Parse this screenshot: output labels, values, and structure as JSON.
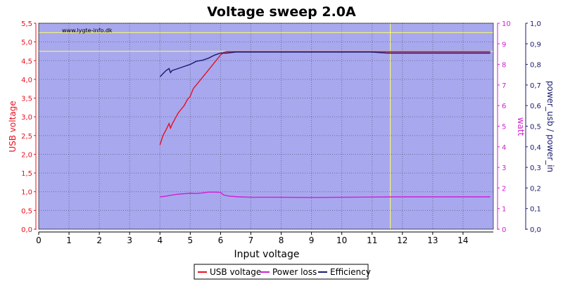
{
  "chart_data": {
    "type": "line",
    "title": "Voltage sweep 2.0A",
    "watermark": "www.lygte-info.dk",
    "xlabel": "Input voltage",
    "ylabel_left": "USB voltage",
    "ylabel_right1": "watt",
    "ylabel_right2": "power_usb / power_in",
    "xlim": [
      0,
      15
    ],
    "ylim_left": [
      0,
      5.5
    ],
    "ylim_right1": [
      0,
      10
    ],
    "ylim_right2": [
      0,
      1
    ],
    "x_ticks": [
      "0",
      "1",
      "2",
      "3",
      "4",
      "5",
      "6",
      "7",
      "8",
      "9",
      "10",
      "11",
      "12",
      "13",
      "14"
    ],
    "y_ticks_left": [
      "0,0",
      "0,5",
      "1,0",
      "1,5",
      "2,0",
      "2,5",
      "3,0",
      "3,5",
      "4,0",
      "4,5",
      "5,0",
      "5,5"
    ],
    "y_ticks_right1": [
      "0",
      "1",
      "2",
      "3",
      "4",
      "5",
      "6",
      "7",
      "8",
      "9",
      "10"
    ],
    "y_ticks_right2": [
      "0,0",
      "0,1",
      "0,2",
      "0,3",
      "0,4",
      "0,5",
      "0,6",
      "0,7",
      "0,8",
      "0,9",
      "1,0"
    ],
    "grid": true,
    "legend_position": "bottom-center",
    "reference_lines": {
      "horizontal_left_axis": [
        5.25,
        4.75
      ],
      "vertical_x": [
        11.6
      ]
    },
    "series": [
      {
        "name": "USB voltage",
        "axis": "left",
        "color": "#e8101e",
        "x": [
          4.0,
          4.1,
          4.2,
          4.3,
          4.35,
          4.4,
          4.5,
          4.6,
          4.7,
          4.8,
          4.9,
          5.0,
          5.1,
          5.2,
          5.3,
          5.4,
          5.5,
          5.6,
          5.7,
          5.8,
          5.9,
          6.0,
          6.1,
          6.2,
          6.5,
          7,
          8,
          9,
          10,
          11,
          12,
          13,
          14,
          14.9
        ],
        "y": [
          2.25,
          2.5,
          2.65,
          2.82,
          2.7,
          2.8,
          2.95,
          3.1,
          3.2,
          3.3,
          3.45,
          3.55,
          3.75,
          3.85,
          3.95,
          4.05,
          4.15,
          4.25,
          4.35,
          4.45,
          4.55,
          4.65,
          4.72,
          4.74,
          4.74,
          4.74,
          4.74,
          4.74,
          4.74,
          4.74,
          4.74,
          4.74,
          4.74,
          4.74
        ]
      },
      {
        "name": "Power loss",
        "axis": "right1",
        "color": "#d21ed2",
        "x": [
          4.0,
          4.2,
          4.4,
          4.6,
          4.8,
          5.0,
          5.2,
          5.4,
          5.6,
          5.8,
          6.0,
          6.1,
          6.3,
          6.6,
          7.0,
          8.0,
          9.0,
          10.0,
          11.0,
          12.0,
          13.0,
          14.0,
          14.9
        ],
        "y": [
          1.57,
          1.6,
          1.66,
          1.7,
          1.72,
          1.74,
          1.73,
          1.76,
          1.8,
          1.8,
          1.79,
          1.66,
          1.6,
          1.57,
          1.55,
          1.55,
          1.54,
          1.55,
          1.56,
          1.57,
          1.57,
          1.57,
          1.57
        ]
      },
      {
        "name": "Efficiency",
        "axis": "right2",
        "color": "#1a1a6e",
        "x": [
          4.0,
          4.1,
          4.2,
          4.3,
          4.35,
          4.4,
          4.5,
          4.6,
          4.7,
          4.8,
          4.9,
          5.0,
          5.2,
          5.4,
          5.6,
          5.8,
          6.0,
          6.2,
          6.5,
          7,
          8,
          9,
          10,
          11,
          11.5,
          12,
          13,
          14,
          14.9
        ],
        "y": [
          0.74,
          0.755,
          0.77,
          0.78,
          0.76,
          0.77,
          0.775,
          0.78,
          0.785,
          0.79,
          0.795,
          0.8,
          0.815,
          0.82,
          0.83,
          0.845,
          0.855,
          0.855,
          0.86,
          0.86,
          0.86,
          0.86,
          0.86,
          0.86,
          0.855,
          0.855,
          0.855,
          0.855,
          0.855
        ]
      }
    ]
  }
}
